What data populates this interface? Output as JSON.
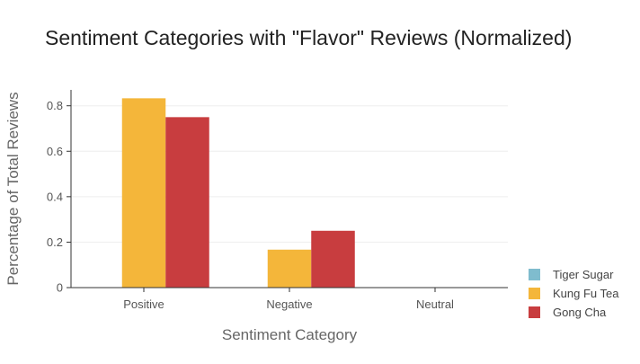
{
  "chart_data": {
    "type": "bar",
    "title": "Sentiment Categories with \"Flavor\" Reviews (Normalized)",
    "xlabel": "Sentiment Category",
    "ylabel": "Percentage of Total Reviews",
    "categories": [
      "Positive",
      "Negative",
      "Neutral"
    ],
    "ylim": [
      0,
      0.87
    ],
    "yticks": [
      0,
      0.2,
      0.4,
      0.6,
      0.8
    ],
    "ytick_labels": [
      "0",
      "0.2",
      "0.4",
      "0.6",
      "0.8"
    ],
    "grid": true,
    "legend_position": "bottom-right",
    "series": [
      {
        "name": "Tiger Sugar",
        "color": "#7fbcce",
        "values": [
          0,
          0,
          0
        ]
      },
      {
        "name": "Kung Fu Tea",
        "color": "#f4b63a",
        "values": [
          0.833,
          0.167,
          0
        ]
      },
      {
        "name": "Gong Cha",
        "color": "#c83d3f",
        "values": [
          0.75,
          0.25,
          0
        ]
      }
    ]
  }
}
